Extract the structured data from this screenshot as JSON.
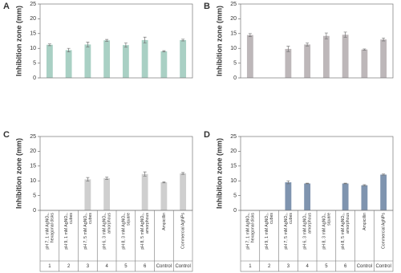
{
  "chart_data": [
    {
      "type": "bar",
      "panel": "A",
      "y_label": "Inhibition zone (mm)",
      "color": "#a9d0c4",
      "values": [
        11.2,
        9.4,
        11.3,
        12.7,
        11.1,
        12.8,
        9.0,
        12.8
      ],
      "errors": [
        0.3,
        0.6,
        0.8,
        0.3,
        0.7,
        1.0,
        0.2,
        0.3
      ],
      "ylim": [
        0,
        25
      ],
      "yticks": [
        0,
        5,
        10,
        15,
        20,
        25
      ]
    },
    {
      "type": "bar",
      "panel": "B",
      "y_label": "Inhibition zone (mm)",
      "color": "#bdb7b9",
      "values": [
        14.5,
        null,
        9.8,
        11.3,
        14.2,
        14.6,
        9.6,
        13.0
      ],
      "errors": [
        0.5,
        null,
        0.9,
        0.5,
        1.0,
        0.9,
        0.2,
        0.5
      ],
      "ylim": [
        0,
        25
      ],
      "yticks": [
        0,
        5,
        10,
        15,
        20,
        25
      ]
    },
    {
      "type": "bar",
      "panel": "C",
      "y_label": "Inhibition zone (mm)",
      "color": "#cfcfcf",
      "values": [
        null,
        null,
        10.5,
        10.9,
        null,
        12.3,
        9.5,
        12.5
      ],
      "errors": [
        null,
        null,
        0.6,
        0.4,
        null,
        0.7,
        0.2,
        0.3
      ],
      "ylim": [
        0,
        25
      ],
      "yticks": [
        0,
        5,
        10,
        15,
        20,
        25
      ],
      "categories": [
        [
          "pH 7, 1 mM AgNO₃,",
          "hexagonal disks"
        ],
        [
          "pH 9, 1 mM AgNO₃,",
          "cubes"
        ],
        [
          "pH 7, 5 mM AgNO₃,",
          "cubes"
        ],
        [
          "pH 6, 3 mM AgNO₃,",
          "amorphous"
        ],
        [
          "pH 8, 3 mM AgNO₃,",
          "square"
        ],
        [
          "pH 8, 5 mM AgNO₃,",
          "amorphous"
        ],
        [
          "Ampicillin"
        ],
        [
          "Commercial AgNPs"
        ]
      ],
      "groups": [
        "1",
        "2",
        "3",
        "4",
        "5",
        "6",
        "Control",
        "Control"
      ]
    },
    {
      "type": "bar",
      "panel": "D",
      "y_label": "Inhibition zone (mm)",
      "color": "#7f94af",
      "values": [
        null,
        null,
        9.5,
        9.1,
        null,
        9.1,
        8.5,
        12.1
      ],
      "errors": [
        null,
        null,
        0.5,
        0.1,
        null,
        0.1,
        0.2,
        0.2
      ],
      "ylim": [
        0,
        25
      ],
      "yticks": [
        0,
        5,
        10,
        15,
        20,
        25
      ],
      "categories": [
        [
          "pH 7, 1 mM AgNO₃,",
          "hexagonal disks"
        ],
        [
          "pH 9, 1 mM AgNO₃,",
          "cubes"
        ],
        [
          "pH 7, 5 mM AgNO₃,",
          "cubes"
        ],
        [
          "pH 6, 3 mM AgNO₃,",
          "amorphous"
        ],
        [
          "pH 8, 3 mM AgNO₃,",
          "square"
        ],
        [
          "pH 8, 5 mM AgNO₃,",
          "amorphous"
        ],
        [
          "Ampicillin"
        ],
        [
          "Commercial AgNPs"
        ]
      ],
      "groups": [
        "1",
        "2",
        "3",
        "4",
        "5",
        "6",
        "Control",
        "Control"
      ]
    }
  ]
}
